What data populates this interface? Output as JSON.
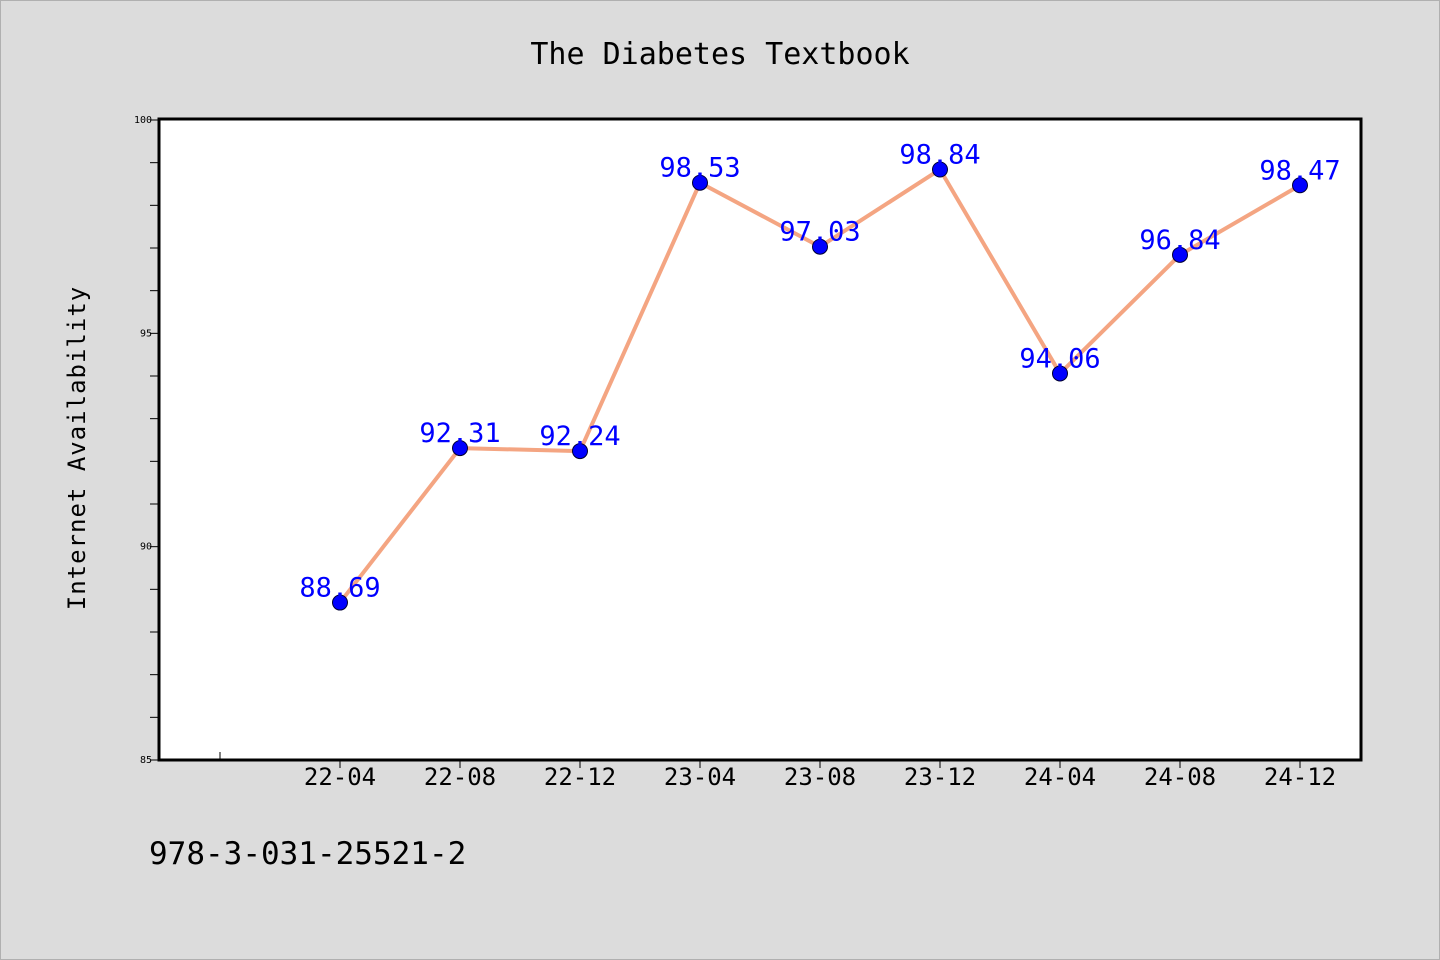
{
  "chart_data": {
    "type": "line",
    "title": "The Diabetes Textbook",
    "xlabel": "",
    "ylabel": "Internet Availability",
    "categories": [
      "22-04",
      "22-08",
      "22-12",
      "23-04",
      "23-08",
      "23-12",
      "24-04",
      "24-08",
      "24-12"
    ],
    "values": [
      88.69,
      92.31,
      92.24,
      98.53,
      97.03,
      98.84,
      94.06,
      96.84,
      98.47
    ],
    "value_labels": [
      "88.69",
      "92.31",
      "92.24",
      "98.53",
      "97.03",
      "98.84",
      "94.06",
      "96.84",
      "98.47"
    ],
    "ylim": [
      85,
      100
    ],
    "yticks": [
      85,
      90,
      95,
      100
    ],
    "ytick_labels": [
      "85",
      "90",
      "95",
      "100"
    ],
    "grid": false,
    "line_color": "#f4a582",
    "marker_color": "#0000ff",
    "label_color": "#0000ff",
    "background_color": "#dcdcdc",
    "plot_background_color": "#ffffff"
  },
  "footer": {
    "isbn": "978-3-031-25521-2"
  }
}
